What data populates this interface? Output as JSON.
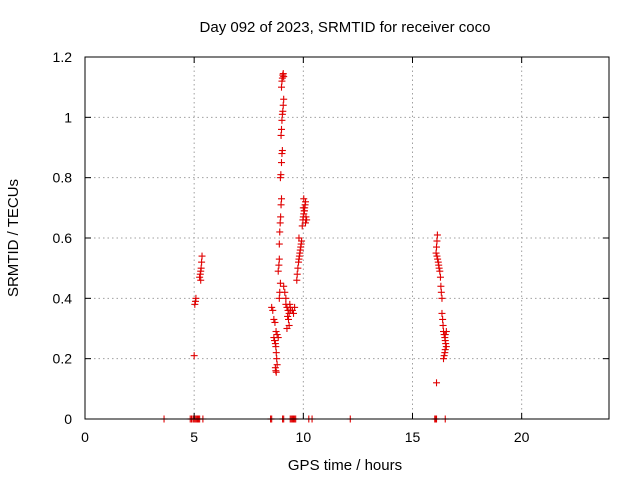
{
  "chart_data": {
    "type": "scatter",
    "title": "Day 092 of 2023, SRMTID for receiver coco",
    "xlabel": "GPS time / hours",
    "ylabel": "SRMTID / TECUs",
    "xlim": [
      0,
      24
    ],
    "ylim": [
      0,
      1.2
    ],
    "x_ticks": [
      "0",
      "5",
      "10",
      "15",
      "20"
    ],
    "y_ticks": [
      "0",
      "0.2",
      "0.4",
      "0.6",
      "0.8",
      "1",
      "1.2"
    ],
    "grid": true,
    "legend": "none",
    "marker": "plus",
    "color": "#e00000",
    "series": [
      {
        "points": [
          [
            3.62,
            0.0
          ],
          [
            4.82,
            0.0
          ],
          [
            4.88,
            0.0
          ],
          [
            4.95,
            0.0
          ],
          [
            5.0,
            0.0
          ],
          [
            5.05,
            0.0
          ],
          [
            5.1,
            0.0
          ],
          [
            5.15,
            0.0
          ],
          [
            5.2,
            0.0
          ],
          [
            5.25,
            0.0
          ],
          [
            5.4,
            0.0
          ],
          [
            5.0,
            0.21
          ],
          [
            5.03,
            0.38
          ],
          [
            5.06,
            0.39
          ],
          [
            5.08,
            0.4
          ],
          [
            5.25,
            0.47
          ],
          [
            5.28,
            0.48
          ],
          [
            5.3,
            0.49
          ],
          [
            5.32,
            0.5
          ],
          [
            5.34,
            0.52
          ],
          [
            5.36,
            0.54
          ],
          [
            5.3,
            0.46
          ],
          [
            8.5,
            0.0
          ],
          [
            8.55,
            0.0
          ],
          [
            9.05,
            0.0
          ],
          [
            9.1,
            0.0
          ],
          [
            9.4,
            0.0
          ],
          [
            9.45,
            0.0
          ],
          [
            9.5,
            0.0
          ],
          [
            9.55,
            0.0
          ],
          [
            9.6,
            0.0
          ],
          [
            9.65,
            0.0
          ],
          [
            10.25,
            0.0
          ],
          [
            10.4,
            0.0
          ],
          [
            12.15,
            0.0
          ],
          [
            8.55,
            0.37
          ],
          [
            8.6,
            0.36
          ],
          [
            8.65,
            0.33
          ],
          [
            8.7,
            0.32
          ],
          [
            8.75,
            0.29
          ],
          [
            8.8,
            0.28
          ],
          [
            8.85,
            0.27
          ],
          [
            8.65,
            0.27
          ],
          [
            8.68,
            0.26
          ],
          [
            8.72,
            0.25
          ],
          [
            8.74,
            0.24
          ],
          [
            8.76,
            0.22
          ],
          [
            8.78,
            0.2
          ],
          [
            8.8,
            0.18
          ],
          [
            8.72,
            0.17
          ],
          [
            8.74,
            0.16
          ],
          [
            8.76,
            0.155
          ],
          [
            8.9,
            0.4
          ],
          [
            8.92,
            0.42
          ],
          [
            8.95,
            0.45
          ],
          [
            8.85,
            0.49
          ],
          [
            8.88,
            0.51
          ],
          [
            8.9,
            0.53
          ],
          [
            8.9,
            0.58
          ],
          [
            8.92,
            0.62
          ],
          [
            8.94,
            0.65
          ],
          [
            8.96,
            0.67
          ],
          [
            8.98,
            0.71
          ],
          [
            9.0,
            0.73
          ],
          [
            8.95,
            0.8
          ],
          [
            8.97,
            0.81
          ],
          [
            9.0,
            0.85
          ],
          [
            9.02,
            0.88
          ],
          [
            9.04,
            0.89
          ],
          [
            8.98,
            0.94
          ],
          [
            9.0,
            0.96
          ],
          [
            9.02,
            0.99
          ],
          [
            9.04,
            1.01
          ],
          [
            9.06,
            1.02
          ],
          [
            9.08,
            1.04
          ],
          [
            9.1,
            1.06
          ],
          [
            9.0,
            1.1
          ],
          [
            9.02,
            1.12
          ],
          [
            9.04,
            1.13
          ],
          [
            9.06,
            1.14
          ],
          [
            9.08,
            1.145
          ],
          [
            9.1,
            1.135
          ],
          [
            9.1,
            0.44
          ],
          [
            9.15,
            0.42
          ],
          [
            9.2,
            0.4
          ],
          [
            9.2,
            0.38
          ],
          [
            9.25,
            0.37
          ],
          [
            9.3,
            0.36
          ],
          [
            9.35,
            0.35
          ],
          [
            9.28,
            0.34
          ],
          [
            9.32,
            0.33
          ],
          [
            9.35,
            0.31
          ],
          [
            9.25,
            0.3
          ],
          [
            9.38,
            0.38
          ],
          [
            9.4,
            0.37
          ],
          [
            9.42,
            0.36
          ],
          [
            9.5,
            0.36
          ],
          [
            9.55,
            0.35
          ],
          [
            9.6,
            0.37
          ],
          [
            9.7,
            0.46
          ],
          [
            9.72,
            0.48
          ],
          [
            9.75,
            0.5
          ],
          [
            9.78,
            0.52
          ],
          [
            9.8,
            0.53
          ],
          [
            9.82,
            0.54
          ],
          [
            9.84,
            0.55
          ],
          [
            9.86,
            0.56
          ],
          [
            9.88,
            0.57
          ],
          [
            9.9,
            0.58
          ],
          [
            9.92,
            0.59
          ],
          [
            9.8,
            0.6
          ],
          [
            9.95,
            0.64
          ],
          [
            9.98,
            0.66
          ],
          [
            10.0,
            0.67
          ],
          [
            10.02,
            0.68
          ],
          [
            10.04,
            0.69
          ],
          [
            10.06,
            0.7
          ],
          [
            10.08,
            0.71
          ],
          [
            10.1,
            0.72
          ],
          [
            10.0,
            0.7
          ],
          [
            10.05,
            0.69
          ],
          [
            10.12,
            0.67
          ],
          [
            10.15,
            0.66
          ],
          [
            10.1,
            0.65
          ],
          [
            10.02,
            0.73
          ],
          [
            16.02,
            0.0
          ],
          [
            16.06,
            0.0
          ],
          [
            16.1,
            0.0
          ],
          [
            16.5,
            0.0
          ],
          [
            16.1,
            0.12
          ],
          [
            16.08,
            0.55
          ],
          [
            16.1,
            0.57
          ],
          [
            16.12,
            0.59
          ],
          [
            16.14,
            0.61
          ],
          [
            16.12,
            0.54
          ],
          [
            16.15,
            0.53
          ],
          [
            16.18,
            0.52
          ],
          [
            16.2,
            0.51
          ],
          [
            16.22,
            0.5
          ],
          [
            16.25,
            0.49
          ],
          [
            16.28,
            0.47
          ],
          [
            16.3,
            0.44
          ],
          [
            16.32,
            0.42
          ],
          [
            16.35,
            0.4
          ],
          [
            16.35,
            0.35
          ],
          [
            16.38,
            0.33
          ],
          [
            16.4,
            0.31
          ],
          [
            16.42,
            0.29
          ],
          [
            16.45,
            0.28
          ],
          [
            16.48,
            0.27
          ],
          [
            16.5,
            0.26
          ],
          [
            16.52,
            0.25
          ],
          [
            16.55,
            0.24
          ],
          [
            16.5,
            0.23
          ],
          [
            16.48,
            0.22
          ],
          [
            16.45,
            0.21
          ],
          [
            16.42,
            0.2
          ],
          [
            16.5,
            0.28
          ],
          [
            16.55,
            0.29
          ]
        ]
      }
    ]
  }
}
